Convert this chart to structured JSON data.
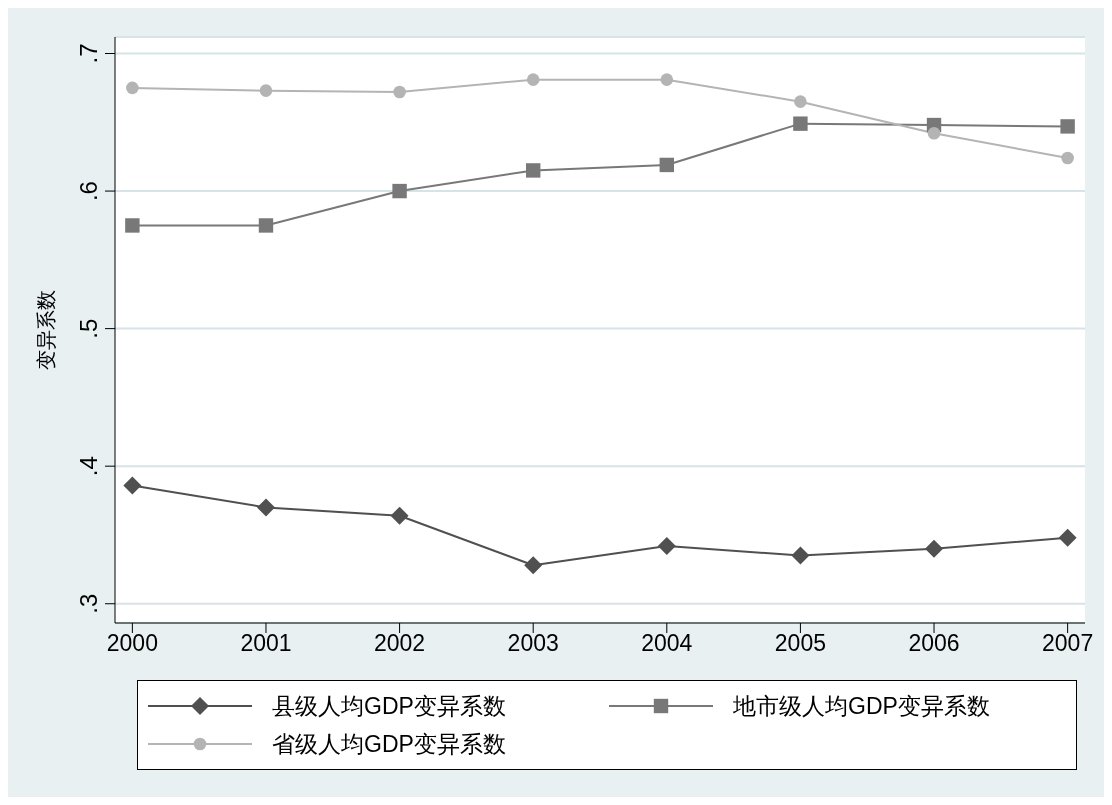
{
  "chart_data": {
    "type": "line",
    "ylabel": "变异系数",
    "x": [
      2000,
      2001,
      2002,
      2003,
      2004,
      2005,
      2006,
      2007
    ],
    "series": [
      {
        "name": "县级人均GDP变异系数",
        "color": "#505050",
        "marker": "diamond",
        "values": [
          0.386,
          0.37,
          0.364,
          0.328,
          0.342,
          0.335,
          0.34,
          0.348
        ]
      },
      {
        "name": "地市级人均GDP变异系数",
        "color": "#787878",
        "marker": "square",
        "values": [
          0.575,
          0.575,
          0.6,
          0.615,
          0.619,
          0.649,
          0.648,
          0.647
        ]
      },
      {
        "name": "省级人均GDP变异系数",
        "color": "#b4b4b4",
        "marker": "circle",
        "values": [
          0.675,
          0.673,
          0.672,
          0.681,
          0.681,
          0.665,
          0.642,
          0.624
        ]
      }
    ],
    "xlim": [
      1999.87,
      2007.13
    ],
    "xticks": [
      2000,
      2001,
      2002,
      2003,
      2004,
      2005,
      2006,
      2007
    ],
    "ylim": [
      0.286,
      0.712
    ],
    "yticks": [
      {
        "value": 0.3,
        "label": ".3"
      },
      {
        "value": 0.4,
        "label": ".4"
      },
      {
        "value": 0.5,
        "label": ".5"
      },
      {
        "value": 0.6,
        "label": ".6"
      },
      {
        "value": 0.7,
        "label": ".7"
      }
    ],
    "grid": "y",
    "legend": "bottom",
    "line_style": "solid"
  }
}
